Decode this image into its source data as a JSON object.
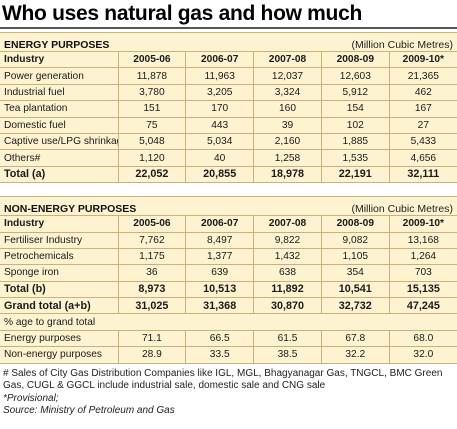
{
  "title": "Who uses natural gas and how much",
  "energy": {
    "section_title": "ENERGY PURPOSES",
    "units": "(Million Cubic Metres)",
    "header": [
      "Industry",
      "2005-06",
      "2006-07",
      "2007-08",
      "2008-09",
      "2009-10*"
    ],
    "rows": [
      [
        "Power generation",
        "11,878",
        "11,963",
        "12,037",
        "12,603",
        "21,365"
      ],
      [
        "Industrial fuel",
        "3,780",
        "3,205",
        "3,324",
        "5,912",
        "462"
      ],
      [
        "Tea plantation",
        "151",
        "170",
        "160",
        "154",
        "167"
      ],
      [
        "Domestic fuel",
        "75",
        "443",
        "39",
        "102",
        "27"
      ],
      [
        "Captive use/LPG shrinkage",
        "5,048",
        "5,034",
        "2,160",
        "1,885",
        "5,433"
      ],
      [
        "Others#",
        "1,120",
        "40",
        "1,258",
        "1,535",
        "4,656"
      ]
    ],
    "total": [
      "Total (a)",
      "22,052",
      "20,855",
      "18,978",
      "22,191",
      "32,111"
    ]
  },
  "non_energy": {
    "section_title": "NON-ENERGY PURPOSES",
    "units": "(Million Cubic Metres)",
    "header": [
      "Industry",
      "2005-06",
      "2006-07",
      "2007-08",
      "2008-09",
      "2009-10*"
    ],
    "rows": [
      [
        "Fertiliser Industry",
        "7,762",
        "8,497",
        "9,822",
        "9,082",
        "13,168"
      ],
      [
        "Petrochemicals",
        "1,175",
        "1,377",
        "1,432",
        "1,105",
        "1,264"
      ],
      [
        "Sponge iron",
        "36",
        "639",
        "638",
        "354",
        "703"
      ]
    ],
    "total": [
      "Total (b)",
      "8,973",
      "10,513",
      "11,892",
      "10,541",
      "15,135"
    ],
    "grand_total": [
      "Grand total (a+b)",
      "31,025",
      "31,368",
      "30,870",
      "32,732",
      "47,245"
    ],
    "pct_label": "% age to grand total",
    "pct_rows": [
      [
        "Energy purposes",
        "71.1",
        "66.5",
        "61.5",
        "67.8",
        "68.0"
      ],
      [
        "Non-energy purposes",
        "28.9",
        "33.5",
        "38.5",
        "32.2",
        "32.0"
      ]
    ]
  },
  "notes": {
    "footnote": "# Sales of City Gas Distribution Companies like IGL, MGL, Bhagyanagar Gas, TNGCL, BMC Green Gas, CUGL & GGCL include industrial sale, domestic sale and CNG sale",
    "provisional": "*Provisional;",
    "source": "Source: Ministry of Petroleum and Gas"
  }
}
